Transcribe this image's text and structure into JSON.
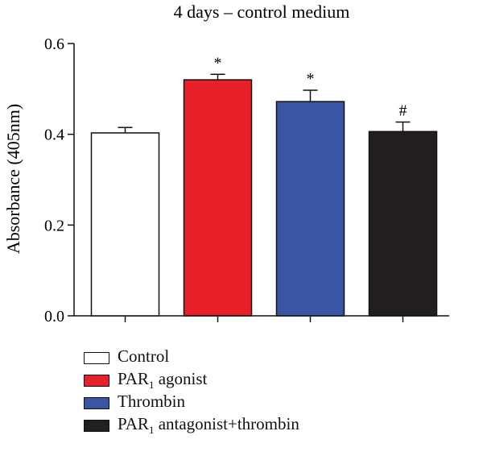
{
  "chart_data": {
    "type": "bar",
    "title": "4 days – control medium",
    "ylabel": "Absorbance (405nm)",
    "xlabel": "",
    "ylim": [
      0.0,
      0.6
    ],
    "yticks": [
      "0.0",
      "0.2",
      "0.4",
      "0.6"
    ],
    "ytick_values": [
      0.0,
      0.2,
      0.4,
      0.6
    ],
    "categories": [
      "Control",
      "PAR1 agonist",
      "Thrombin",
      "PAR1 antagonist+thrombin"
    ],
    "values": [
      0.403,
      0.52,
      0.472,
      0.406
    ],
    "errors": [
      0.012,
      0.012,
      0.025,
      0.021
    ],
    "significance": [
      "",
      "*",
      "*",
      "#"
    ],
    "colors": [
      "#ffffff",
      "#e8202a",
      "#3a55a4",
      "#231f20"
    ],
    "grid": false,
    "legend_position": "bottom"
  },
  "legend": {
    "items": [
      {
        "main": "Control",
        "sub": "",
        "rest": ""
      },
      {
        "main": "PAR",
        "sub": "1",
        "rest": " agonist"
      },
      {
        "main": "Thrombin",
        "sub": "",
        "rest": ""
      },
      {
        "main": "PAR",
        "sub": "1",
        "rest": " antagonist+thrombin"
      }
    ]
  }
}
